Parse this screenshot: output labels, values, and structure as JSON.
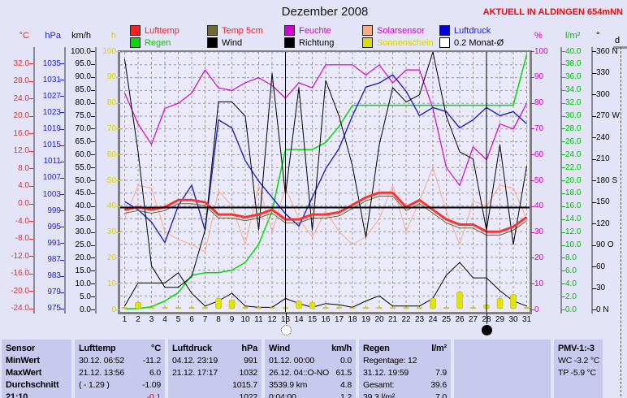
{
  "title": "Dezember 2008",
  "station_banner": "AKTUELL IN ALDINGEN 654mNN",
  "colors": {
    "page_bg": "#e4e4f8",
    "plot_bg": "#eaeafc",
    "grid": "#999999",
    "axis": "#8a8a9a",
    "banner_red": "#ff0000",
    "table_bg": "#c9c9ee",
    "lufttemp": "#ff3232",
    "temp5cm": "#6b6b33",
    "feuchte": "#d400d4",
    "solarsensor": "#ffaa80",
    "luftdruck": "#2222cc",
    "regen": "#00dd00",
    "wind": "#000000",
    "richtung": "#000000",
    "sonnenschein": "#e3e300",
    "monat_avg": "#000000"
  },
  "legend": {
    "rows": [
      [
        {
          "label": "Lufttemp",
          "swatch": "#ff2020",
          "text": "#ff2020"
        },
        {
          "label": "Temp 5cm",
          "swatch": "#6b6b33",
          "text": "#ff2020"
        },
        {
          "label": "Feuchte",
          "swatch": "#d400d4",
          "text": "#d400d4"
        },
        {
          "label": "Solarsensor",
          "swatch": "#ffaa80",
          "text": "#d400d4"
        },
        {
          "label": "Luftdruck",
          "swatch": "#0000dd",
          "text": "#2020dd"
        }
      ],
      [
        {
          "label": "Regen",
          "swatch": "#00dd00",
          "text": "#00cc00"
        },
        {
          "label": "Wind",
          "swatch": "#000000",
          "text": "#000000"
        },
        {
          "label": "Richtung",
          "swatch": "#000000",
          "text": "#000000"
        },
        {
          "label": "Sonnenschein",
          "swatch": "#dddd00",
          "text": "#d6d600"
        },
        {
          "label": "0.2 Monat-Ø",
          "swatch": "#ffffff",
          "text": "#000000"
        }
      ]
    ]
  },
  "axes": {
    "temp_c": {
      "unit": "°C",
      "color": "#e03030",
      "ticks": [
        "32.0",
        "28.0",
        "24.0",
        "20.0",
        "16.0",
        "12.0",
        "8.0",
        "4.0",
        "0.0",
        "-4.0",
        "-8.0",
        "-12.0",
        "-16.0",
        "-20.0",
        "-24.0"
      ]
    },
    "hpa": {
      "unit": "hPa",
      "color": "#2020e0",
      "ticks": [
        "1035",
        "1031",
        "1027",
        "1023",
        "1019",
        "1015",
        "1011",
        "1007",
        "1003",
        "999",
        "995",
        "991",
        "987",
        "983",
        "979",
        "975"
      ]
    },
    "kmh": {
      "unit": "km/h",
      "color": "#000000",
      "ticks": [
        "100.0",
        "95.0",
        "90.0",
        "85.0",
        "80.0",
        "75.0",
        "70.0",
        "65.0",
        "60.0",
        "55.0",
        "50.0",
        "45.0",
        "40.0",
        "35.0",
        "30.0",
        "25.0",
        "20.0",
        "15.0",
        "10.0",
        "5.0",
        "0.0"
      ]
    },
    "sun_h": {
      "unit": "h",
      "color": "#d6d600",
      "ticks": [
        "100",
        "90",
        "80",
        "70",
        "60",
        "50",
        "40",
        "30",
        "20",
        "10",
        "0"
      ]
    },
    "pct": {
      "unit": "%",
      "color": "#d400d4",
      "ticks": [
        "100",
        "90",
        "80",
        "70",
        "60",
        "50",
        "40",
        "30",
        "20",
        "10",
        "0"
      ]
    },
    "rain": {
      "unit": "l/m²",
      "color": "#00c000",
      "ticks": [
        "40.0",
        "38.0",
        "36.0",
        "34.0",
        "32.0",
        "30.0",
        "28.0",
        "26.0",
        "24.0",
        "22.0",
        "20.0",
        "18.0",
        "16.0",
        "14.0",
        "12.0",
        "10.0",
        "8.0",
        "6.0",
        "4.0",
        "2.0",
        "0.0"
      ]
    },
    "dir": {
      "unit": "°",
      "color": "#000000",
      "ticks": [
        "360 N",
        "330",
        "300",
        "270 W",
        "240",
        "210",
        "180 S",
        "150",
        "120",
        "90 O",
        "60",
        "30",
        "0  N"
      ]
    },
    "d_axis": {
      "unit": "d",
      "color": "#000000"
    }
  },
  "chart_data": {
    "type": "line",
    "title": "Dezember 2008",
    "x_days": [
      1,
      2,
      3,
      4,
      5,
      6,
      7,
      8,
      9,
      10,
      11,
      12,
      13,
      14,
      15,
      16,
      17,
      18,
      19,
      20,
      21,
      22,
      23,
      24,
      25,
      26,
      27,
      28,
      29,
      30,
      31
    ],
    "axis_ranges": {
      "temp_c": [
        -24,
        32
      ],
      "hpa": [
        975,
        1035
      ],
      "kmh": [
        0,
        100
      ],
      "pct": [
        0,
        100
      ],
      "rain_lm2": [
        0,
        40
      ],
      "dir_deg": [
        0,
        360
      ]
    },
    "grid": true,
    "legend_position": "top",
    "monthly_avg_lufttemp_c": -1.09,
    "moon_markers": [
      {
        "day": 13,
        "phase": "full-moon"
      },
      {
        "day": 28,
        "phase": "new-moon"
      }
    ],
    "series": [
      {
        "name": "Regen",
        "unit": "l/m²",
        "axis": "rain",
        "color": "#00dd00",
        "width": 1.5,
        "values": [
          0,
          0,
          0.3,
          1.2,
          2.5,
          5.2,
          5.6,
          5.6,
          6,
          7.2,
          10,
          15.2,
          24.8,
          24.8,
          24.8,
          25.9,
          28.4,
          31.7,
          31.7,
          31.7,
          31.7,
          31.7,
          31.7,
          31.7,
          31.7,
          31.7,
          31.7,
          31.7,
          31.7,
          31.7,
          39.6
        ]
      },
      {
        "name": "Solarsensor",
        "unit": "%",
        "axis": "pct",
        "color": "#ffaa80",
        "width": 1,
        "values": [
          35,
          48,
          47,
          30,
          27,
          25,
          22,
          46,
          40,
          25,
          48,
          30,
          47,
          35,
          28,
          38,
          30,
          25,
          28,
          35,
          48,
          30,
          42,
          55,
          38,
          25,
          42,
          40,
          48,
          47,
          35
        ]
      },
      {
        "name": "Feuchte",
        "unit": "%",
        "axis": "pct",
        "color": "#d400d4",
        "width": 1.2,
        "values": [
          84,
          72,
          64,
          78,
          80,
          84,
          93,
          86,
          85,
          88,
          90,
          87,
          82,
          88,
          86,
          95,
          95,
          95,
          91,
          95,
          88,
          93,
          93,
          78,
          55,
          48,
          63,
          58,
          72,
          70,
          80
        ]
      },
      {
        "name": "Luftdruck",
        "unit": "hPa",
        "axis": "hpa",
        "color": "#2222cc",
        "width": 1.4,
        "values": [
          1001,
          999,
          996,
          991,
          1000,
          1005,
          994,
          1021,
          1019,
          1011,
          1006,
          1002,
          998,
          995,
          1002,
          1009,
          1014,
          1022,
          1029,
          1030,
          1032,
          1028,
          1022,
          1024,
          1023,
          1019,
          1021,
          1024,
          1022,
          1023,
          1020
        ]
      },
      {
        "name": "Temp 5cm",
        "unit": "°C",
        "axis": "temp",
        "color": "#6b6b33",
        "width": 1,
        "values": [
          -2.4,
          -1.8,
          -2.4,
          -1.8,
          -0.2,
          -0.2,
          -0.7,
          -3.5,
          -3.5,
          -4.1,
          -3.5,
          -2.4,
          -4.6,
          -4.6,
          -3.5,
          -3.5,
          -3,
          -1.3,
          0.4,
          1.5,
          1.5,
          -1.8,
          -0.2,
          -2.4,
          -4.6,
          -5.8,
          -5.8,
          -7.4,
          -7.4,
          -6.3,
          -4.1
        ]
      },
      {
        "name": "Richtung",
        "unit": "°",
        "axis": "deg",
        "color": "#000000",
        "width": 1,
        "values": [
          350,
          220,
          60,
          30,
          30,
          45,
          110,
          290,
          290,
          270,
          110,
          330,
          160,
          310,
          110,
          320,
          270,
          200,
          100,
          230,
          310,
          290,
          300,
          360,
          270,
          220,
          210,
          110,
          230,
          90,
          200
        ]
      },
      {
        "name": "Wind",
        "unit": "km/h",
        "axis": "kmh",
        "color": "#000000",
        "width": 1,
        "values": [
          1,
          10,
          10,
          10,
          14,
          6,
          1,
          3,
          6,
          1,
          0.5,
          0.5,
          4,
          2,
          0.5,
          2,
          1.5,
          0.5,
          3,
          5,
          1,
          1,
          1,
          4,
          13,
          18,
          12,
          12,
          7,
          3,
          1
        ]
      },
      {
        "name": "Sonnenschein",
        "unit": "h",
        "axis": "sun",
        "color": "#e3e300",
        "type": "bar",
        "values": [
          0.5,
          2.5,
          0.5,
          0.5,
          0.5,
          0.5,
          0.5,
          4,
          3.5,
          0.5,
          0.5,
          0.3,
          0.5,
          3,
          2.5,
          0.5,
          0.5,
          0.3,
          0.5,
          0.5,
          0.5,
          0.3,
          0.5,
          4,
          0.3,
          6.5,
          0.5,
          1.5,
          4,
          5.5,
          0.5
        ]
      },
      {
        "name": "Lufttemp",
        "unit": "°C",
        "axis": "temp",
        "color": "#ff3232",
        "width": 3,
        "values": [
          -1.6,
          -1,
          -1.6,
          -1,
          0.6,
          0.6,
          0.1,
          -2.7,
          -2.7,
          -3.3,
          -2.7,
          -1.6,
          -3.8,
          -3.8,
          -2.7,
          -2.7,
          -2.2,
          -0.5,
          1.2,
          2.3,
          2.3,
          -1,
          0.6,
          -1.6,
          -3.8,
          -5,
          -5,
          -6.6,
          -6.6,
          -5.5,
          -3.3
        ]
      }
    ]
  },
  "table": {
    "panels": [
      {
        "rows": [
          [
            "Sensor",
            ""
          ],
          [
            "MinWert",
            ""
          ],
          [
            "MaxWert",
            ""
          ],
          [
            "Durchschnitt",
            ""
          ],
          [
            "21:10",
            ""
          ]
        ]
      },
      {
        "rows": [
          [
            "Lufttemp",
            "°C"
          ],
          [
            "30.12.  06:52",
            "-11.2"
          ],
          [
            "21.12.  13:56",
            "6.0"
          ],
          [
            "( - 1.29 )",
            "-1.09"
          ],
          [
            "",
            "-0.1"
          ]
        ]
      },
      {
        "rows": [
          [
            "Luftdruck",
            "hPa"
          ],
          [
            "04.12.  23:19",
            "991"
          ],
          [
            "21.12.  17:17",
            "1032"
          ],
          [
            "",
            "1015.7"
          ],
          [
            "",
            "1022"
          ]
        ]
      },
      {
        "rows": [
          [
            "Wind",
            "km/h"
          ],
          [
            "01.12.  00:00",
            "0.0"
          ],
          [
            "26.12.  04::O-NO",
            "61.5"
          ],
          [
            "3539.9 km",
            "4.8"
          ],
          [
            "0:04:00",
            "1.2"
          ]
        ]
      },
      {
        "rows": [
          [
            "Regen",
            "l/m²"
          ],
          [
            "Regentage: 12",
            ""
          ],
          [
            "31.12.  19:59",
            "7.9"
          ],
          [
            "Gesamt:",
            "39.6"
          ],
          [
            "39.3 l/m²",
            "7.0"
          ]
        ]
      },
      {
        "rows": [
          [
            "",
            ""
          ],
          [
            "",
            ""
          ],
          [
            "",
            ""
          ],
          [
            "",
            ""
          ],
          [
            "",
            ""
          ]
        ]
      },
      {
        "rows": [
          [
            "PMV-1:-3",
            ""
          ],
          [
            "WC -3.2 °C",
            ""
          ],
          [
            "TP -5.9 °C",
            ""
          ],
          [
            "",
            ""
          ],
          [
            "",
            ""
          ]
        ]
      }
    ]
  }
}
